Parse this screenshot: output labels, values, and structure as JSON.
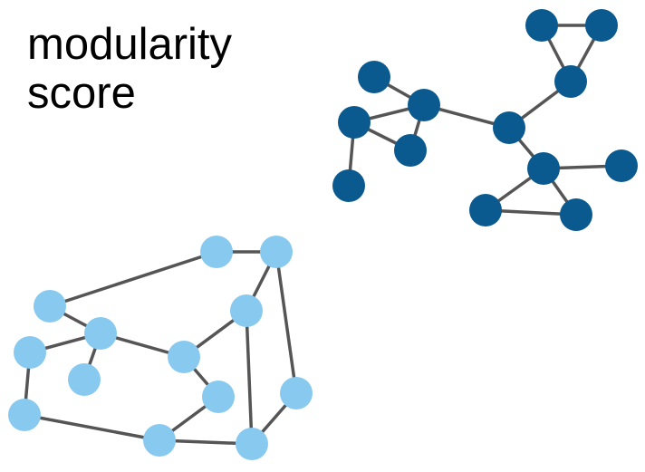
{
  "title": {
    "line1": "modularity",
    "line2": "score"
  },
  "colors": {
    "community_dark": "#0b5a8f",
    "community_light": "#88c9f0",
    "edge": "#555555",
    "text": "#000000",
    "background": "#ffffff"
  },
  "nodes": [
    {
      "id": "d1",
      "community": "dark"
    },
    {
      "id": "d2",
      "community": "dark"
    },
    {
      "id": "d3",
      "community": "dark"
    },
    {
      "id": "d4",
      "community": "dark"
    },
    {
      "id": "d5",
      "community": "dark"
    },
    {
      "id": "d6",
      "community": "dark"
    },
    {
      "id": "d7",
      "community": "dark"
    },
    {
      "id": "d8",
      "community": "dark"
    },
    {
      "id": "d9",
      "community": "dark"
    },
    {
      "id": "d10",
      "community": "dark"
    },
    {
      "id": "d11",
      "community": "dark"
    },
    {
      "id": "d12",
      "community": "dark"
    },
    {
      "id": "d13",
      "community": "dark"
    },
    {
      "id": "l1",
      "community": "light"
    },
    {
      "id": "l2",
      "community": "light"
    },
    {
      "id": "l3",
      "community": "light"
    },
    {
      "id": "l4",
      "community": "light"
    },
    {
      "id": "l5",
      "community": "light"
    },
    {
      "id": "l6",
      "community": "light"
    },
    {
      "id": "l7",
      "community": "light"
    },
    {
      "id": "l8",
      "community": "light"
    },
    {
      "id": "l9",
      "community": "light"
    },
    {
      "id": "l10",
      "community": "light"
    },
    {
      "id": "l11",
      "community": "light"
    },
    {
      "id": "l12",
      "community": "light"
    },
    {
      "id": "l13",
      "community": "light"
    },
    {
      "id": "l14",
      "community": "light"
    }
  ],
  "edges": [
    [
      "d1",
      "d2"
    ],
    [
      "d1",
      "d3"
    ],
    [
      "d2",
      "d3"
    ],
    [
      "d3",
      "d4"
    ],
    [
      "d4",
      "d5"
    ],
    [
      "d5",
      "d7"
    ],
    [
      "d5",
      "d6"
    ],
    [
      "d6",
      "d7"
    ],
    [
      "d6",
      "d8"
    ],
    [
      "d4",
      "d9"
    ],
    [
      "d9",
      "d10"
    ],
    [
      "d9",
      "d12"
    ],
    [
      "d9",
      "d11"
    ],
    [
      "d11",
      "d12"
    ],
    [
      "d12",
      "d13"
    ],
    [
      "l1",
      "l2"
    ],
    [
      "l1",
      "l3"
    ],
    [
      "l2",
      "l4"
    ],
    [
      "l2",
      "l9"
    ],
    [
      "l3",
      "l5"
    ],
    [
      "l3",
      "l6"
    ],
    [
      "l3",
      "l7"
    ],
    [
      "l5",
      "l7"
    ],
    [
      "l6",
      "l8"
    ],
    [
      "l4",
      "l8"
    ],
    [
      "l4",
      "l10"
    ],
    [
      "l10",
      "l11"
    ],
    [
      "l10",
      "l14"
    ],
    [
      "l8",
      "l12"
    ],
    [
      "l12",
      "l11"
    ],
    [
      "l12",
      "l13"
    ],
    [
      "l9",
      "l13"
    ]
  ]
}
